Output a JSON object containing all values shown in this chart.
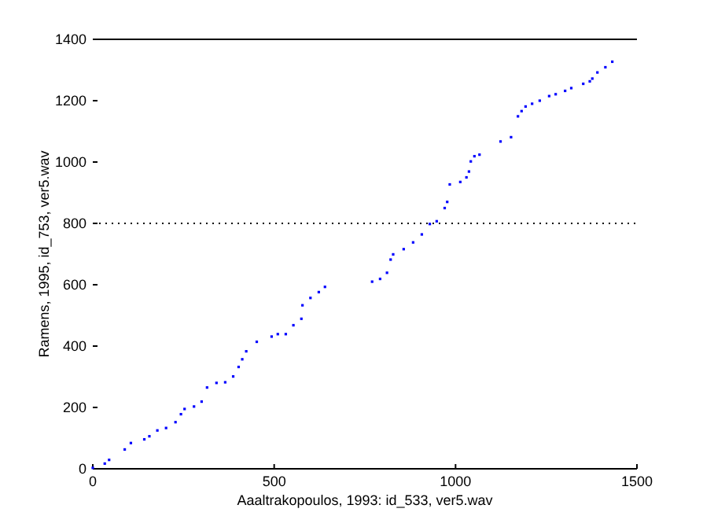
{
  "chart_data": {
    "type": "scatter",
    "xlabel": "Aaaltrakopoulos, 1993: id_533, ver5.wav",
    "ylabel": "Ramens, 1995, id_753, ver5.wav",
    "xlim": [
      0,
      1500
    ],
    "ylim": [
      0,
      1400
    ],
    "xticks": [
      0,
      500,
      1000,
      1500
    ],
    "yticks": [
      0,
      200,
      400,
      600,
      800,
      1000,
      1200,
      1400
    ],
    "grid": false,
    "marker": "square",
    "ref_lines": [
      {
        "axis": "y",
        "value": 800,
        "line_style": "dotted",
        "color": "#000000"
      },
      {
        "axis": "y",
        "value": 1400,
        "line_style": "solid",
        "color": "#000000"
      }
    ],
    "series": [
      {
        "color": "#0000ff",
        "x": [
          0,
          33,
          45,
          88,
          105,
          142,
          156,
          178,
          202,
          228,
          243,
          253,
          279,
          300,
          315,
          341,
          365,
          387,
          402,
          412,
          423,
          452,
          493,
          510,
          532,
          553,
          575,
          578,
          600,
          623,
          640,
          770,
          792,
          811,
          821,
          828,
          857,
          883,
          907,
          929,
          948,
          970,
          977,
          984,
          1013,
          1030,
          1037,
          1042,
          1052,
          1066,
          1124,
          1153,
          1172,
          1182,
          1193,
          1211,
          1232,
          1258,
          1276,
          1302,
          1319,
          1352,
          1370,
          1377,
          1391,
          1413,
          1432
        ],
        "values": [
          3,
          17,
          29,
          63,
          84,
          96,
          106,
          125,
          133,
          152,
          178,
          195,
          203,
          219,
          265,
          280,
          282,
          301,
          332,
          357,
          383,
          414,
          431,
          439,
          439,
          468,
          489,
          533,
          557,
          576,
          593,
          610,
          619,
          639,
          682,
          699,
          716,
          738,
          764,
          798,
          807,
          850,
          870,
          927,
          935,
          950,
          969,
          1002,
          1019,
          1024,
          1067,
          1081,
          1149,
          1166,
          1181,
          1190,
          1200,
          1215,
          1221,
          1232,
          1241,
          1255,
          1263,
          1272,
          1292,
          1309,
          1327
        ]
      }
    ]
  }
}
